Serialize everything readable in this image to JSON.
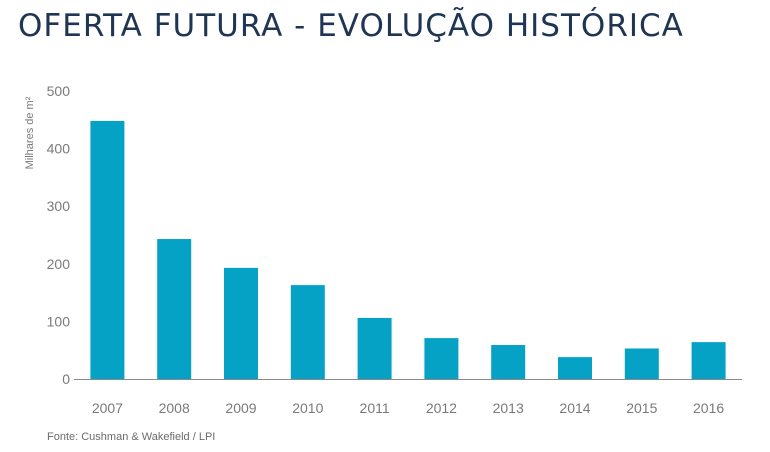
{
  "title": "OFERTA FUTURA - EVOLUÇÃO HISTÓRICA",
  "source": "Fonte: Cushman & Wakefield / LPI",
  "colors": {
    "title": "#1f3554",
    "bar": "#06a2c6",
    "axis": "#8a8a8a",
    "tick_text": "#7a7a7a"
  },
  "chart_data": {
    "type": "bar",
    "ylabel": "Milhares de m²",
    "xlabel": "",
    "ylim": [
      0,
      500
    ],
    "yticks": [
      0,
      100,
      200,
      300,
      400,
      500
    ],
    "grid": false,
    "categories": [
      "2007",
      "2008",
      "2009",
      "2010",
      "2011",
      "2012",
      "2013",
      "2014",
      "2015",
      "2016"
    ],
    "values": [
      448,
      243,
      193,
      163,
      106,
      71,
      59,
      38,
      53,
      64
    ]
  }
}
